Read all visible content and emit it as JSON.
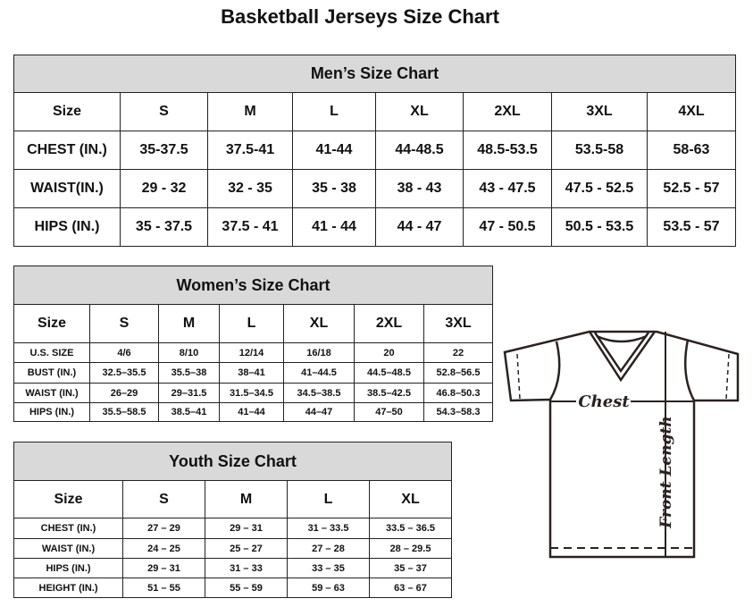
{
  "title": "Basketball Jerseys Size Chart",
  "men": {
    "title": "Men’s Size Chart",
    "rows": [
      [
        "Size",
        "S",
        "M",
        "L",
        "XL",
        "2XL",
        "3XL",
        "4XL"
      ],
      [
        "CHEST (IN.)",
        "35-37.5",
        "37.5-41",
        "41-44",
        "44-48.5",
        "48.5-53.5",
        "53.5-58",
        "58-63"
      ],
      [
        "WAIST(IN.)",
        "29 - 32",
        "32 - 35",
        "35 - 38",
        "38 - 43",
        "43 - 47.5",
        "47.5 - 52.5",
        "52.5 - 57"
      ],
      [
        "HIPS (IN.)",
        "35 - 37.5",
        "37.5 - 41",
        "41 - 44",
        "44 - 47",
        "47 - 50.5",
        "50.5 - 53.5",
        "53.5 - 57"
      ]
    ]
  },
  "women": {
    "title": "Women’s Size Chart",
    "rows": [
      [
        "Size",
        "S",
        "M",
        "L",
        "XL",
        "2XL",
        "3XL"
      ],
      [
        "U.S. SIZE",
        "4/6",
        "8/10",
        "12/14",
        "16/18",
        "20",
        "22"
      ],
      [
        "BUST (IN.)",
        "32.5–35.5",
        "35.5–38",
        "38–41",
        "41–44.5",
        "44.5–48.5",
        "52.8–56.5"
      ],
      [
        "WAIST (IN.)",
        "26–29",
        "29–31.5",
        "31.5–34.5",
        "34.5–38.5",
        "38.5–42.5",
        "46.8–50.3"
      ],
      [
        "HIPS (IN.)",
        "35.5–58.5",
        "38.5–41",
        "41–44",
        "44–47",
        "47–50",
        "54.3–58.3"
      ]
    ]
  },
  "youth": {
    "title": "Youth Size Chart",
    "rows": [
      [
        "Size",
        "S",
        "M",
        "L",
        "XL"
      ],
      [
        "CHEST (IN.)",
        "27 – 29",
        "29 – 31",
        "31 – 33.5",
        "33.5 – 36.5"
      ],
      [
        "WAIST (IN.)",
        "24 – 25",
        "25 – 27",
        "27 – 28",
        "28 – 29.5"
      ],
      [
        "HIPS (IN.)",
        "29 – 31",
        "31 – 33",
        "33 – 35",
        "35 – 37"
      ],
      [
        "HEIGHT (IN.)",
        "51 – 55",
        "55 – 59",
        "59 – 63",
        "63 – 67"
      ]
    ]
  },
  "diagram": {
    "chest_label": "Chest",
    "length_label": "Front Length"
  }
}
